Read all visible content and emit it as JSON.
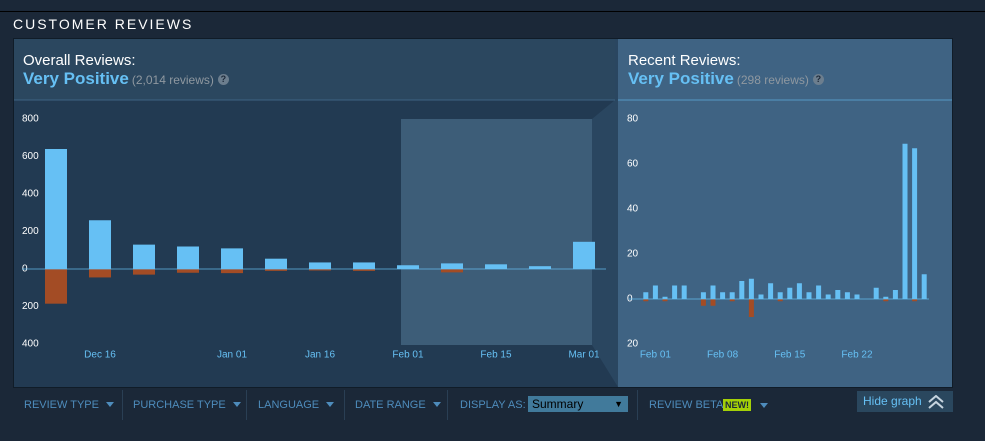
{
  "section_title": "CUSTOMER REVIEWS",
  "overall": {
    "label": "Overall Reviews:",
    "rating": "Very Positive",
    "count": "(2,014 reviews)",
    "help": "?"
  },
  "recent": {
    "label": "Recent Reviews:",
    "rating": "Very Positive",
    "count": "(298 reviews)",
    "help": "?"
  },
  "filters": [
    "REVIEW TYPE",
    "PURCHASE TYPE",
    "LANGUAGE",
    "DATE RANGE"
  ],
  "display_as": {
    "label": "DISPLAY AS:",
    "value": "Summary"
  },
  "review_beta": {
    "label": "REVIEW BETA",
    "badge": "NEW!"
  },
  "hide_graph": "Hide graph",
  "chart_data": [
    {
      "type": "bar",
      "categories": [
        null,
        "Dec 16",
        null,
        null,
        "Jan 01",
        null,
        "Jan 16",
        null,
        "Feb 01",
        null,
        "Feb 15",
        null,
        "Mar 01"
      ],
      "series": [
        {
          "color": "#66c0f4",
          "values": [
            640,
            260,
            130,
            120,
            110,
            55,
            35,
            35,
            20,
            30,
            25,
            15,
            145
          ]
        },
        {
          "color": "#a34c25",
          "values": [
            -185,
            -45,
            -30,
            -20,
            -22,
            -10,
            -8,
            -10,
            0,
            -18,
            0,
            0,
            0
          ]
        }
      ],
      "ylim": [
        -400,
        800
      ],
      "yticks": [
        {
          "value": -400,
          "label": "400"
        },
        {
          "value": -200,
          "label": "200"
        },
        0,
        200,
        400,
        600,
        800
      ]
    },
    {
      "type": "bar",
      "categories": [
        null,
        "Feb 01",
        null,
        null,
        null,
        null,
        null,
        null,
        "Feb 08",
        null,
        null,
        null,
        null,
        null,
        null,
        "Feb 15",
        null,
        null,
        null,
        null,
        null,
        null,
        "Feb 22",
        null,
        null,
        null,
        null,
        null,
        null,
        null
      ],
      "series": [
        {
          "color": "#66c0f4",
          "values": [
            3,
            6,
            1,
            6,
            6,
            0,
            3,
            6,
            3,
            3,
            8,
            9,
            2,
            7,
            3,
            5,
            7,
            3,
            6,
            2,
            4,
            3,
            2,
            0,
            5,
            1,
            4,
            69,
            67,
            11
          ]
        },
        {
          "color": "#a34c25",
          "values": [
            -1,
            0,
            -1,
            0,
            0,
            0,
            -3,
            -3,
            0,
            -1,
            0,
            -8,
            0,
            0,
            -1,
            0,
            0,
            0,
            0,
            0,
            0,
            0,
            0,
            0,
            0,
            -1,
            0,
            0,
            -1,
            0
          ]
        }
      ],
      "ylim": [
        -20,
        80
      ],
      "yticks": [
        {
          "value": -20,
          "label": "20"
        },
        0,
        20,
        40,
        60,
        80
      ]
    }
  ]
}
